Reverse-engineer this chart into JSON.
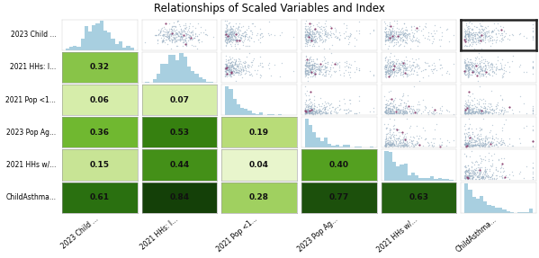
{
  "title": "Relationships of Scaled Variables and Index",
  "variables": [
    "2023 Child ...",
    "2021 HHs: I...",
    "2021 Pop <1...",
    "2023 Pop Ag...",
    "2021 HHs w/...",
    "ChildAsthma..."
  ],
  "xlabel_vars": [
    "2023 Child ...",
    "2021 HHs: I...",
    "2021 Pop <1...",
    "2023 Pop Ag...",
    "2021 HHs w/...",
    "ChildAsthma..."
  ],
  "n_vars": 6,
  "correlations": [
    [
      1.0,
      0.32,
      0.06,
      0.36,
      0.15,
      0.61
    ],
    [
      0.32,
      1.0,
      0.07,
      0.53,
      0.44,
      0.84
    ],
    [
      0.06,
      0.07,
      1.0,
      0.19,
      0.04,
      0.28
    ],
    [
      0.36,
      0.53,
      0.19,
      1.0,
      0.4,
      0.77
    ],
    [
      0.15,
      0.44,
      0.04,
      0.4,
      1.0,
      0.63
    ],
    [
      0.61,
      0.84,
      0.28,
      0.77,
      0.63,
      1.0
    ]
  ],
  "scatter_color": "#9ab0c4",
  "scatter_color_outlier": "#8b3a6a",
  "hist_color": "#a8cfe0",
  "background_color": "#ffffff",
  "title_fontsize": 8.5,
  "label_fontsize": 5.5,
  "corr_fontsize": 6.5,
  "n_points": 300,
  "seed": 42,
  "fig_width": 5.99,
  "fig_height": 2.87
}
